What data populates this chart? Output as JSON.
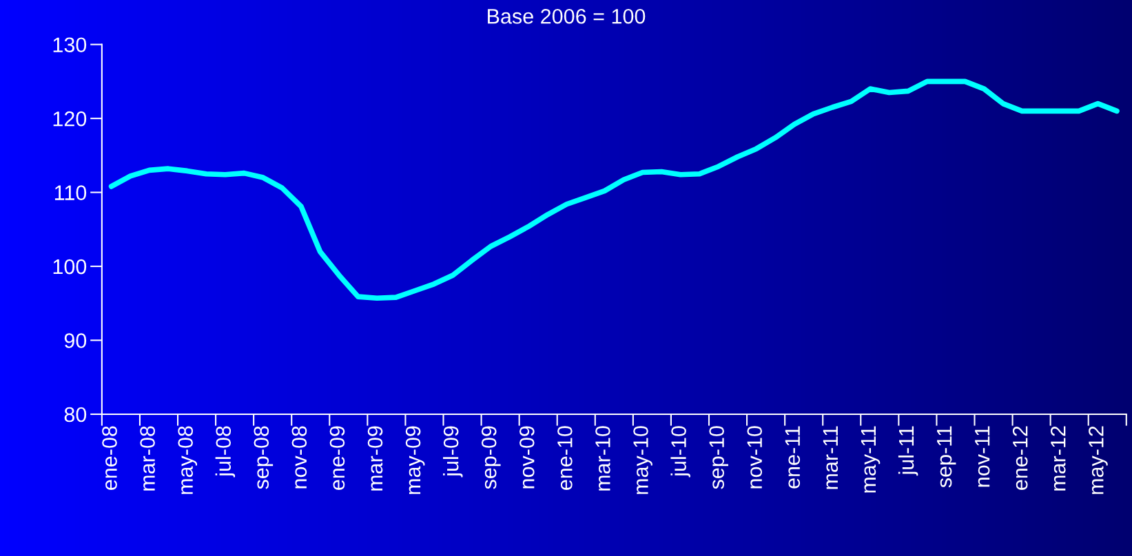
{
  "chart_data": {
    "type": "line",
    "title": "Base 2006 = 100",
    "categories": [
      "ene-08",
      null,
      "mar-08",
      null,
      "may-08",
      null,
      "jul-08",
      null,
      "sep-08",
      null,
      "nov-08",
      null,
      "ene-09",
      null,
      "mar-09",
      null,
      "may-09",
      null,
      "jul-09",
      null,
      "sep-09",
      null,
      "nov-09",
      null,
      "ene-10",
      null,
      "mar-10",
      null,
      "may-10",
      null,
      "jul-10",
      null,
      "sep-10",
      null,
      "nov-10",
      null,
      "ene-11",
      null,
      "mar-11",
      null,
      "may-11",
      null,
      "jul-11",
      null,
      "sep-11",
      null,
      "nov-11",
      null,
      "ene-12",
      null,
      "mar-12",
      null,
      "may-12",
      null
    ],
    "series": [
      {
        "color": "#00ffff",
        "values": [
          110.8,
          112.2,
          113.0,
          113.2,
          112.9,
          112.5,
          112.4,
          112.6,
          112.0,
          110.6,
          108.1,
          102.0,
          98.8,
          95.9,
          95.7,
          95.8,
          96.7,
          97.6,
          98.8,
          100.8,
          102.7,
          104.0,
          105.4,
          107.0,
          108.4,
          109.3,
          110.2,
          111.7,
          112.7,
          112.8,
          112.4,
          112.5,
          113.5,
          114.8,
          115.9,
          117.4,
          119.2,
          120.6,
          121.5,
          122.3,
          124.0,
          123.5,
          123.7,
          125.0,
          125.0,
          125.0,
          124.0,
          122.0,
          121.0,
          121.0,
          121.0,
          121.0,
          122.0,
          121.0
        ]
      }
    ],
    "ylim": [
      80,
      130
    ],
    "yticks": [
      80,
      90,
      100,
      110,
      120,
      130
    ],
    "grid": false,
    "legend": false,
    "marker": "none",
    "line_style": "solid"
  }
}
